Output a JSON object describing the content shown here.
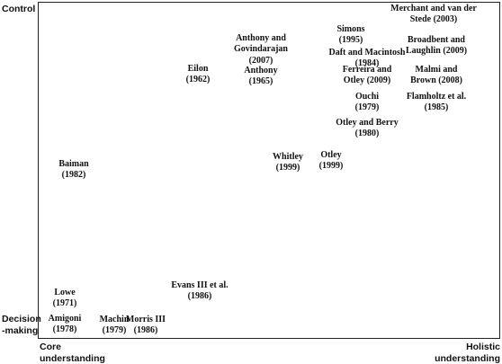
{
  "y_axis": {
    "top": "Control",
    "bottom": [
      "Decision",
      "-making"
    ]
  },
  "x_axis": {
    "left": [
      "Core",
      "understanding"
    ],
    "right": [
      "Holistic",
      "understanding"
    ]
  },
  "nodes": [
    {
      "lines": [
        "Merchant and van der",
        "Stede (2003)"
      ]
    },
    {
      "lines": [
        "Simons",
        "(1995)"
      ]
    },
    {
      "lines": [
        "Anthony and",
        "Govindarajan",
        "(2007)"
      ]
    },
    {
      "lines": [
        "Broadbent and",
        "Laughlin (2009)"
      ]
    },
    {
      "lines": [
        "Daft and Macintosh",
        "(1984)"
      ]
    },
    {
      "lines": [
        "Eilon",
        "(1962)"
      ]
    },
    {
      "lines": [
        "Anthony",
        "(1965)"
      ]
    },
    {
      "lines": [
        "Ferreira and",
        "Otley (2009)"
      ]
    },
    {
      "lines": [
        "Malmi and",
        "Brown (2008)"
      ]
    },
    {
      "lines": [
        "Ouchi",
        "(1979)"
      ]
    },
    {
      "lines": [
        "Flamholtz et al.",
        "(1985)"
      ]
    },
    {
      "lines": [
        "Otley and Berry",
        "(1980)"
      ]
    },
    {
      "lines": [
        "Whitley",
        "(1999)"
      ]
    },
    {
      "lines": [
        "Otley",
        "(1999)"
      ]
    },
    {
      "lines": [
        "Baiman",
        "(1982)"
      ]
    },
    {
      "lines": [
        "Evans III et al.",
        "(1986)"
      ]
    },
    {
      "lines": [
        "Lowe",
        "(1971)"
      ]
    },
    {
      "lines": [
        "Amigoni",
        "(1978)"
      ]
    },
    {
      "lines": [
        "Machin",
        "(1979)"
      ]
    },
    {
      "lines": [
        "Morris III",
        "(1986)"
      ]
    }
  ]
}
